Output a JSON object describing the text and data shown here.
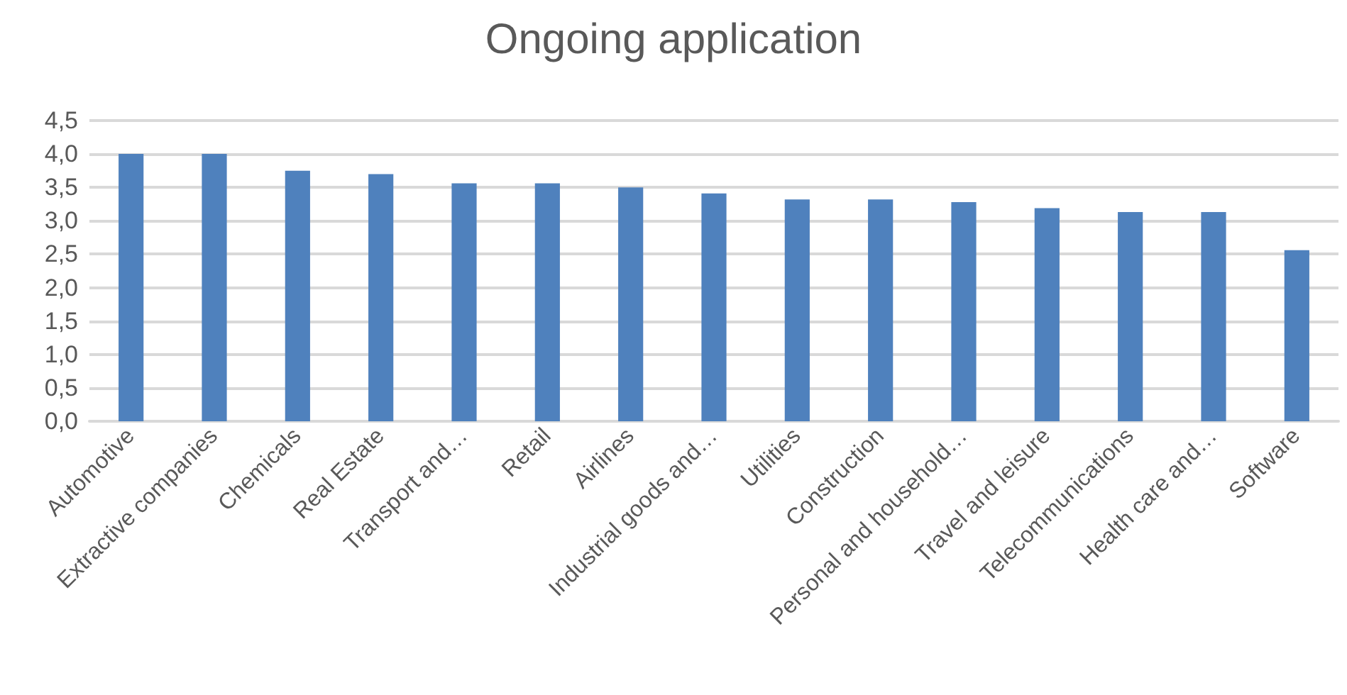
{
  "chart_data": {
    "type": "bar",
    "title": "Ongoing application",
    "categories": [
      "Automotive",
      "Extractive companies",
      "Chemicals",
      "Real Estate",
      "Transport and…",
      "Retail",
      "Airlines",
      "Industrial goods and…",
      "Utilities",
      "Construction",
      "Personal and household…",
      "Travel and leisure",
      "Telecommunications",
      "Health care and…",
      "Software"
    ],
    "values": [
      4.0,
      4.0,
      3.75,
      3.7,
      3.56,
      3.56,
      3.5,
      3.41,
      3.32,
      3.32,
      3.28,
      3.19,
      3.13,
      3.13,
      2.56
    ],
    "color": "#4f81bd",
    "ylim": [
      0,
      4.5
    ],
    "yticks": [
      {
        "value": 0,
        "label": "0,0"
      },
      {
        "value": 0.5,
        "label": "0,5"
      },
      {
        "value": 1,
        "label": "1,0"
      },
      {
        "value": 1.5,
        "label": "1,5"
      },
      {
        "value": 2,
        "label": "2,0"
      },
      {
        "value": 2.5,
        "label": "2,5"
      },
      {
        "value": 3,
        "label": "3,0"
      },
      {
        "value": 3.5,
        "label": "3,5"
      },
      {
        "value": 4,
        "label": "4,0"
      },
      {
        "value": 4.5,
        "label": "4,5"
      }
    ],
    "grid": "y"
  }
}
